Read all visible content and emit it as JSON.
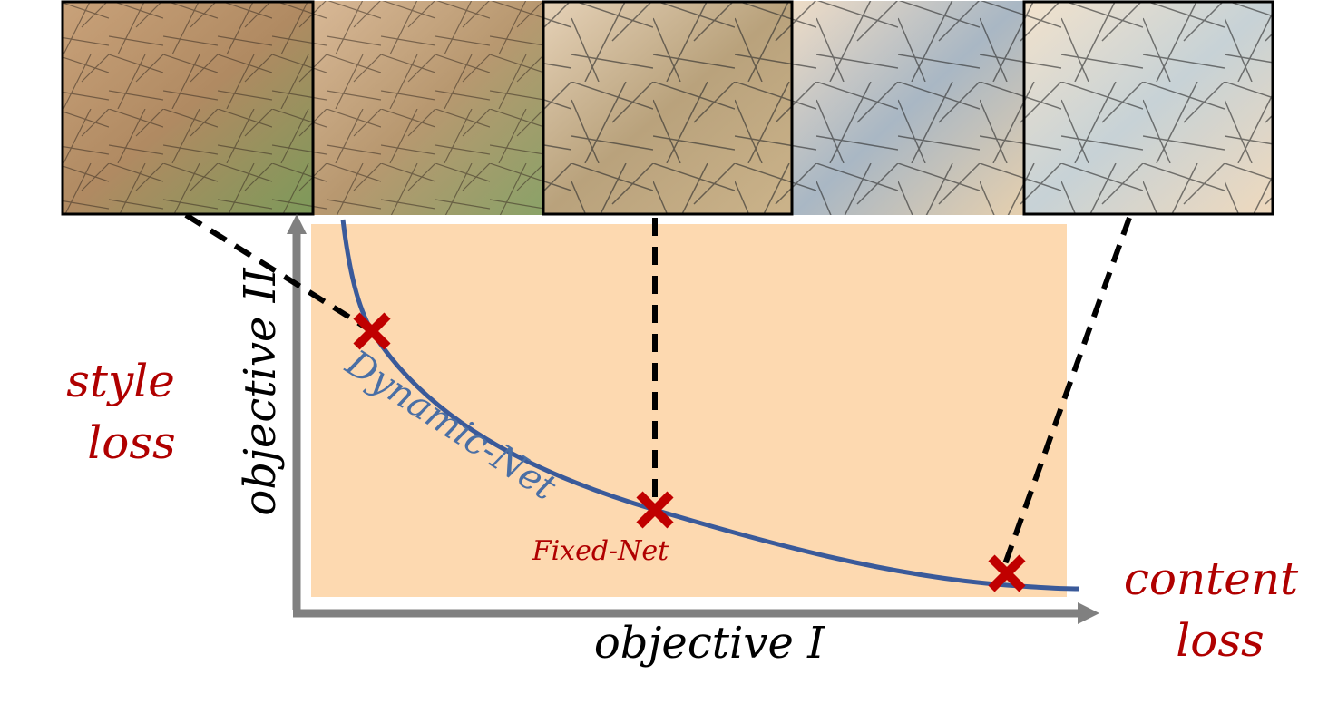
{
  "y_axis_label": "objective II",
  "x_axis_label": "objective I",
  "y_objective_name": [
    "style",
    "loss"
  ],
  "x_objective_name": [
    "content",
    "loss"
  ],
  "curve_label": "Dynamic-Net",
  "point_label": "Fixed-Net"
}
